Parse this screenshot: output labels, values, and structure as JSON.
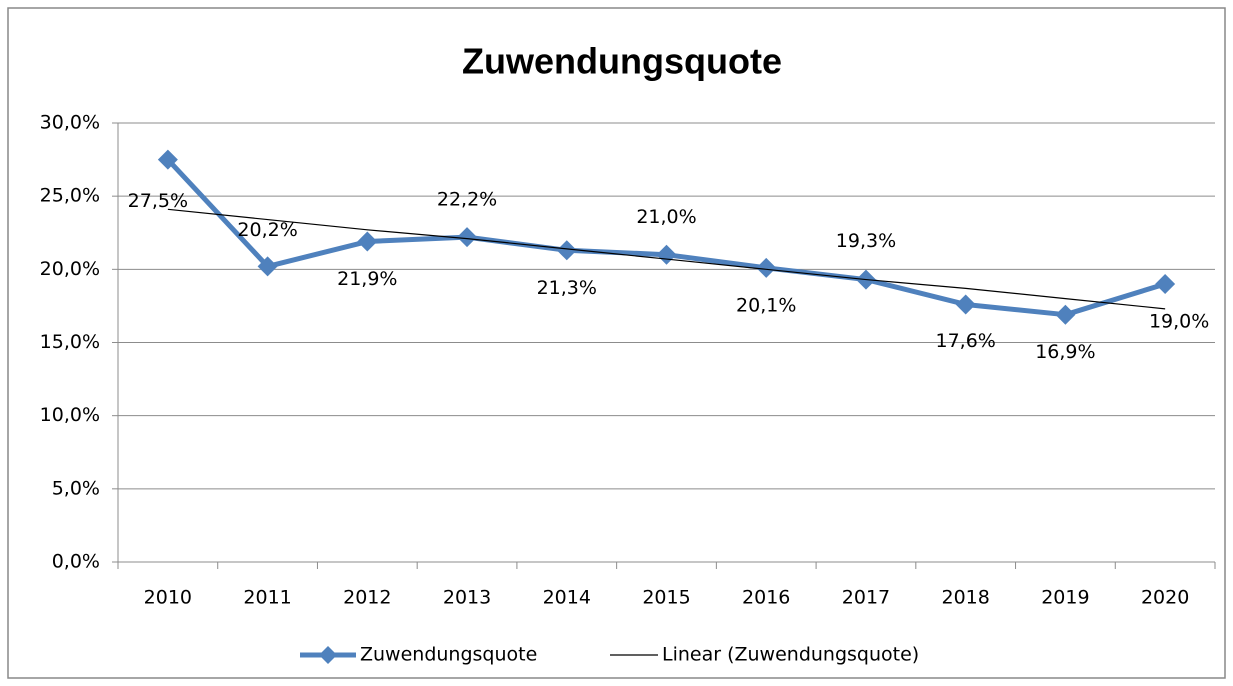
{
  "chart_data": {
    "type": "line",
    "title": "Zuwendungsquote",
    "categories": [
      "2010",
      "2011",
      "2012",
      "2013",
      "2014",
      "2015",
      "2016",
      "2017",
      "2018",
      "2019",
      "2020"
    ],
    "series": [
      {
        "name": "Zuwendungsquote",
        "color": "#4f81bd",
        "values": [
          27.5,
          20.2,
          21.9,
          22.2,
          21.3,
          21.0,
          20.1,
          19.3,
          17.6,
          16.9,
          19.0
        ],
        "value_labels": [
          "27,5%",
          "20,2%",
          "21,9%",
          "22,2%",
          "21,3%",
          "21,0%",
          "20,1%",
          "19,3%",
          "17,6%",
          "16,9%",
          "19,0%"
        ]
      },
      {
        "name": "Linear (Zuwendungsquote)",
        "color": "#000000",
        "values": [
          24.1,
          23.4,
          22.7,
          22.1,
          21.4,
          20.7,
          20.0,
          19.3,
          18.7,
          18.0,
          17.3
        ]
      }
    ],
    "ylim": [
      0,
      30
    ],
    "yticks": [
      {
        "value": 0,
        "label": "0,0%"
      },
      {
        "value": 5,
        "label": "5,0%"
      },
      {
        "value": 10,
        "label": "10,0%"
      },
      {
        "value": 15,
        "label": "15,0%"
      },
      {
        "value": 20,
        "label": "20,0%"
      },
      {
        "value": 25,
        "label": "25,0%"
      },
      {
        "value": 30,
        "label": "30,0%"
      }
    ],
    "grid": true,
    "legend": "bottom"
  }
}
